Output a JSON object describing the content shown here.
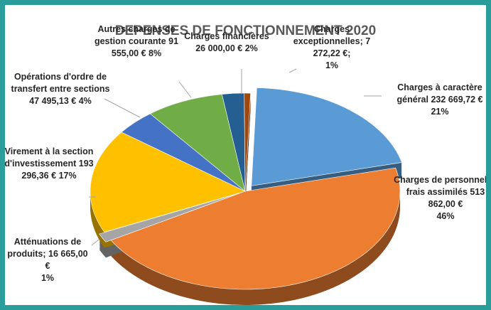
{
  "chart_data": {
    "type": "pie",
    "title": "DEPENSES DE FONCTIONNEMENT 2020",
    "categories": [
      "Charges à caractère général",
      "Charges de personnel et frais assimilés",
      "Atténuations de produits;",
      "Virement à la section d'investissement",
      "Opérations d'ordre de transfert entre sections",
      "Autres charges de gestion courante",
      "Charges financières",
      "Charges exceptionnelles;"
    ],
    "values": [
      232669.72,
      513862.0,
      16665.0,
      193296.36,
      47495.13,
      91555.0,
      26000.0,
      7272.22
    ],
    "value_labels": [
      "232 669,72 €",
      "513 862,00 €",
      "16 665,00 €",
      "193 296,36 €",
      "47 495,13 €",
      "91 555,00 €",
      "26 000,00 €",
      "7 272,22 €;"
    ],
    "percents": [
      21,
      46,
      1,
      17,
      4,
      8,
      2,
      1
    ],
    "percent_labels": [
      "21%",
      "46%",
      "1%",
      "17%",
      "4%",
      "8%",
      "2%",
      "1%"
    ],
    "colors": [
      "#5b9bd5",
      "#ed7d31",
      "#a5a5a5",
      "#ffc000",
      "#4472c4",
      "#70ad47",
      "#255e91",
      "#9e480e"
    ]
  }
}
